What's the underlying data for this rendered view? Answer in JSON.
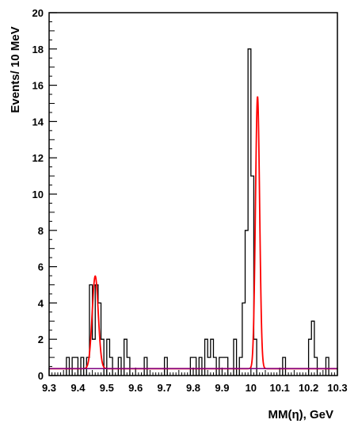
{
  "chart_data": {
    "type": "histogram",
    "xlabel": "MM(η), GeV",
    "ylabel": "Events/ 10 MeV",
    "xlim": [
      9.3,
      10.3
    ],
    "ylim": [
      0,
      20
    ],
    "bin_width": 0.01,
    "x_ticks": [
      "9.3",
      "9.4",
      "9.5",
      "9.6",
      "9.7",
      "9.8",
      "9.9",
      "10",
      "10.1",
      "10.2",
      "10.3"
    ],
    "y_ticks": [
      "0",
      "2",
      "4",
      "6",
      "8",
      "10",
      "12",
      "14",
      "16",
      "18",
      "20"
    ],
    "histogram": {
      "bin_starts": [
        9.36,
        9.37,
        9.38,
        9.39,
        9.4,
        9.41,
        9.42,
        9.43,
        9.44,
        9.45,
        9.46,
        9.47,
        9.48,
        9.49,
        9.5,
        9.51,
        9.52,
        9.53,
        9.54,
        9.55,
        9.56,
        9.57,
        9.58,
        9.59,
        9.6,
        9.61,
        9.62,
        9.63,
        9.64,
        9.65,
        9.66,
        9.67,
        9.68,
        9.69,
        9.7,
        9.71,
        9.72,
        9.73,
        9.74,
        9.75,
        9.76,
        9.77,
        9.78,
        9.79,
        9.8,
        9.81,
        9.82,
        9.83,
        9.84,
        9.85,
        9.86,
        9.87,
        9.88,
        9.89,
        9.9,
        9.91,
        9.92,
        9.93,
        9.94,
        9.95,
        9.96,
        9.97,
        9.98,
        9.99,
        10.0,
        10.01,
        10.02,
        10.03,
        10.04,
        10.05,
        10.06,
        10.07,
        10.08,
        10.09,
        10.1,
        10.11,
        10.12,
        10.13,
        10.14,
        10.15,
        10.16,
        10.17,
        10.18,
        10.19,
        10.2,
        10.21,
        10.22,
        10.23,
        10.24,
        10.25,
        10.26
      ],
      "counts": [
        1,
        0,
        1,
        1,
        0,
        1,
        0,
        1,
        5,
        2,
        5,
        4,
        2,
        0,
        2,
        1,
        0,
        0,
        1,
        0,
        2,
        1,
        0,
        0,
        0,
        0,
        0,
        1,
        0,
        0,
        0,
        0,
        0,
        0,
        1,
        0,
        0,
        0,
        0,
        0,
        0,
        0,
        0,
        1,
        1,
        0,
        1,
        0,
        2,
        1,
        2,
        1,
        0,
        1,
        1,
        1,
        0,
        0,
        2,
        0,
        1,
        4,
        8,
        18,
        11,
        2,
        0,
        0,
        0,
        0,
        0,
        0,
        0,
        0,
        0,
        1,
        0,
        0,
        0,
        0,
        0,
        0,
        0,
        0,
        2,
        3,
        1,
        0,
        0,
        0,
        1
      ]
    },
    "series": [
      {
        "color": "#ff0000",
        "style": "solid",
        "fit": {
          "background_level": 0.38,
          "peaks": [
            {
              "mean": 9.46,
              "sigma": 0.0105,
              "amplitude": 5.1
            },
            {
              "mean": 10.023,
              "sigma": 0.0072,
              "amplitude": 15.0
            }
          ]
        }
      },
      {
        "color": "#0000ff",
        "style": "dotted",
        "values_constant": 0.38
      },
      {
        "color": "#800080",
        "style": "solid",
        "values_constant": 0.38
      }
    ],
    "grid": false,
    "legend": "none"
  }
}
